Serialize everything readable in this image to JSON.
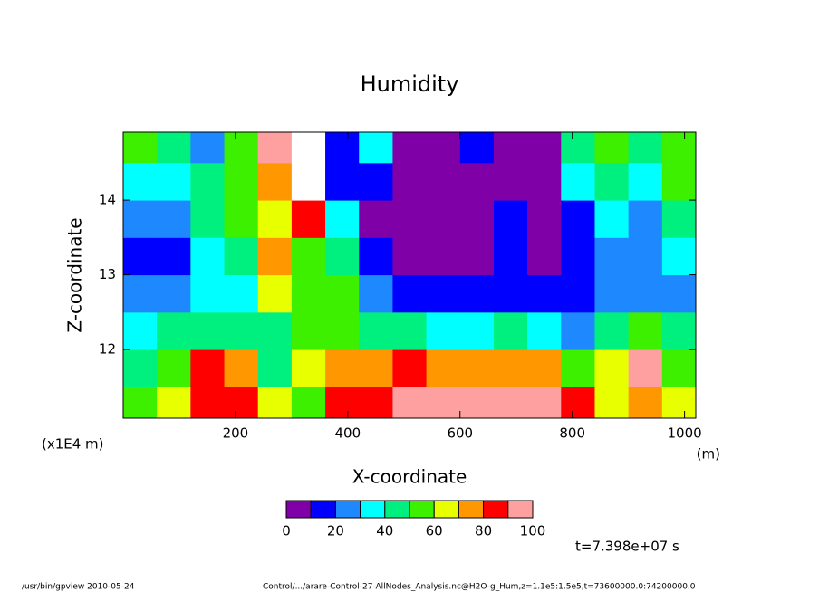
{
  "chart_data": {
    "type": "contour",
    "title": "Humidity",
    "x_label": "X-coordinate",
    "y_label": "Z-coordinate",
    "y_unit": "(x1E4 m)",
    "x_unit": "(m)",
    "time_label": "t=7.398e+07 s",
    "footer_left": "/usr/bin/gpview   2010-05-24",
    "footer_right": "Control/.../arare-Control-27-AllNodes_Analysis.nc@H2O-g_Hum,z=1.1e5:1.5e5,t=73600000.0:74200000.0",
    "xlim": [
      0,
      1020
    ],
    "ylim": [
      11.08,
      14.91
    ],
    "xticks": [
      200,
      400,
      600,
      800,
      1000
    ],
    "yticks": [
      12,
      13,
      14
    ],
    "x_edges": [
      0,
      60,
      120,
      180,
      240,
      300,
      360,
      420,
      480,
      540,
      600,
      660,
      720,
      780,
      840,
      900,
      960,
      1020
    ],
    "y_edges": [
      11.08,
      11.5,
      12,
      12.5,
      13,
      13.5,
      14,
      14.5,
      14.91
    ],
    "z": [
      [
        50,
        60,
        85,
        85,
        60,
        55,
        85,
        85,
        95,
        90,
        90,
        90,
        90,
        80,
        65,
        75,
        60
      ],
      [
        45,
        55,
        80,
        70,
        45,
        60,
        70,
        75,
        80,
        75,
        70,
        70,
        75,
        55,
        60,
        90,
        55
      ],
      [
        35,
        40,
        45,
        40,
        40,
        50,
        55,
        45,
        40,
        35,
        30,
        40,
        35,
        25,
        40,
        55,
        40
      ],
      [
        25,
        20,
        30,
        35,
        60,
        55,
        50,
        25,
        15,
        10,
        10,
        15,
        10,
        15,
        20,
        25,
        20
      ],
      [
        15,
        15,
        30,
        40,
        70,
        55,
        45,
        15,
        5,
        5,
        5,
        15,
        5,
        10,
        25,
        20,
        30
      ],
      [
        20,
        25,
        40,
        50,
        60,
        80,
        30,
        5,
        5,
        5,
        5,
        10,
        5,
        15,
        30,
        20,
        40
      ],
      [
        30,
        35,
        45,
        55,
        70,
        105,
        10,
        15,
        5,
        5,
        5,
        5,
        5,
        30,
        40,
        35,
        50
      ],
      [
        50,
        40,
        20,
        55,
        90,
        105,
        10,
        30,
        5,
        5,
        15,
        5,
        5,
        40,
        50,
        45,
        55
      ]
    ],
    "levels": [
      0,
      10,
      20,
      30,
      40,
      50,
      60,
      70,
      80,
      90,
      100
    ],
    "colors": [
      "#8000a8",
      "#0000ff",
      "#1e88ff",
      "#00ffff",
      "#00f080",
      "#3cf000",
      "#e8ff00",
      "#ff9800",
      "#ff0000",
      "#ffa0a0"
    ],
    "above_color": "#ffffff",
    "colorbar_ticks": [
      0,
      20,
      40,
      60,
      80,
      100
    ]
  }
}
